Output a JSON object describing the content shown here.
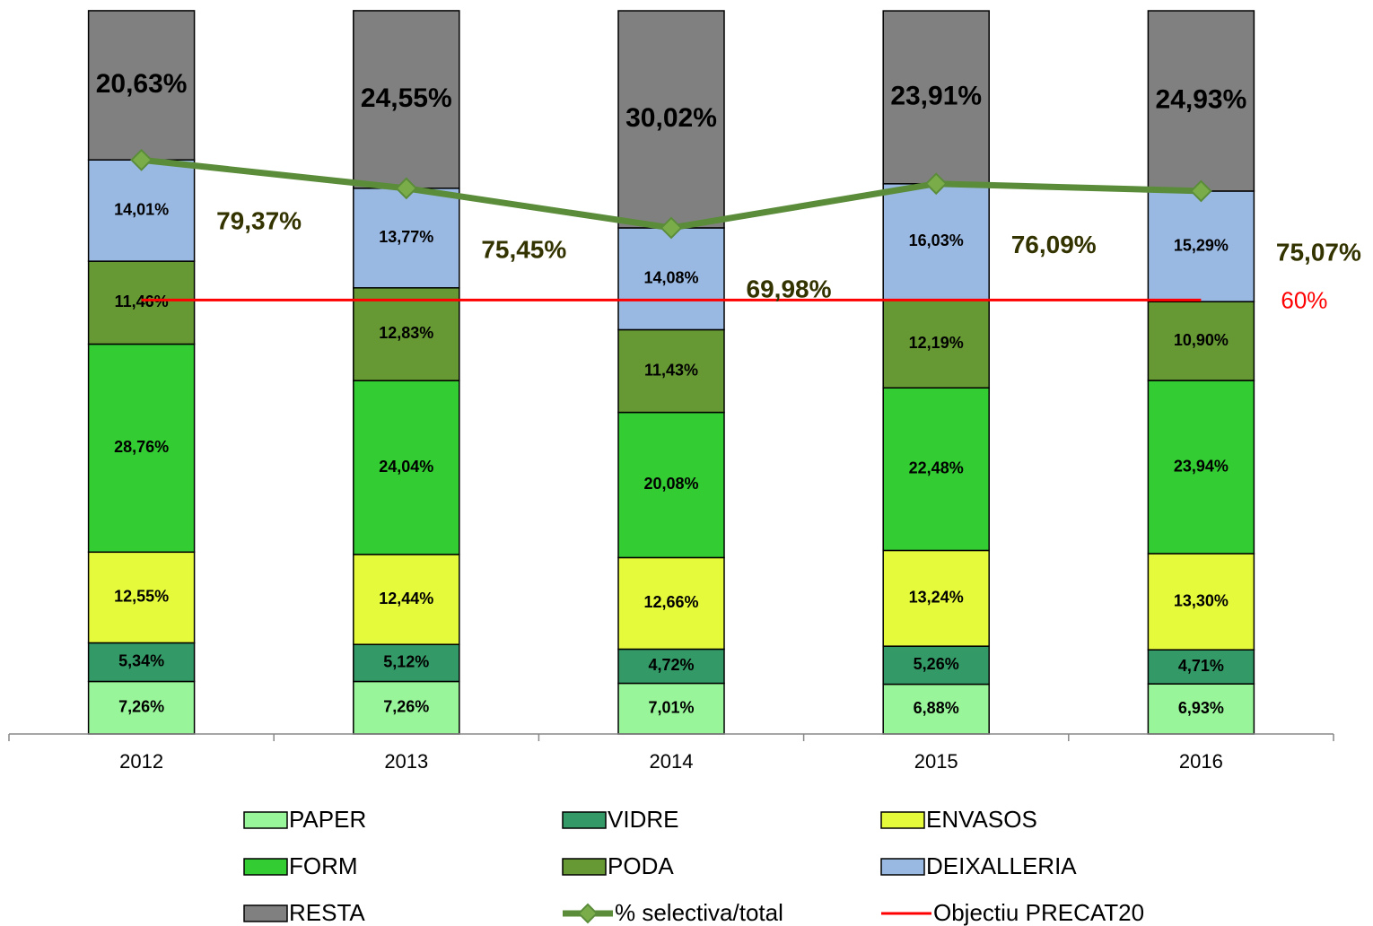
{
  "chart_data": {
    "type": "bar",
    "stacked": true,
    "categories": [
      "2012",
      "2013",
      "2014",
      "2015",
      "2016"
    ],
    "ylim": [
      0,
      100
    ],
    "series": [
      {
        "name": "PAPER",
        "color": "#99f599",
        "values": [
          7.26,
          7.26,
          7.01,
          6.88,
          6.93
        ],
        "value_labels": [
          "7,26%",
          "7,26%",
          "7,01%",
          "6,88%",
          "6,93%"
        ]
      },
      {
        "name": "VIDRE",
        "color": "#339966",
        "values": [
          5.34,
          5.12,
          4.72,
          5.26,
          4.71
        ],
        "value_labels": [
          "5,34%",
          "5,12%",
          "4,72%",
          "5,26%",
          "4,71%"
        ]
      },
      {
        "name": "ENVASOS",
        "color": "#e6fa3c",
        "values": [
          12.55,
          12.44,
          12.66,
          13.24,
          13.3
        ],
        "value_labels": [
          "12,55%",
          "12,44%",
          "12,66%",
          "13,24%",
          "13,30%"
        ]
      },
      {
        "name": "FORM",
        "color": "#33cc33",
        "values": [
          28.76,
          24.04,
          20.08,
          22.48,
          23.94
        ],
        "value_labels": [
          "28,76%",
          "24,04%",
          "20,08%",
          "22,48%",
          "23,94%"
        ]
      },
      {
        "name": "PODA",
        "color": "#669933",
        "values": [
          11.46,
          12.83,
          11.43,
          12.19,
          10.9
        ],
        "value_labels": [
          "11,46%",
          "12,83%",
          "11,43%",
          "12,19%",
          "10,90%"
        ]
      },
      {
        "name": "DEIXALLERIA",
        "color": "#99b8e2",
        "values": [
          14.01,
          13.77,
          14.08,
          16.03,
          15.29
        ],
        "value_labels": [
          "14,01%",
          "13,77%",
          "14,08%",
          "16,03%",
          "15,29%"
        ]
      },
      {
        "name": "RESTA",
        "color": "#808080",
        "values": [
          20.63,
          24.55,
          30.02,
          23.91,
          24.93
        ],
        "value_labels": [
          "20,63%",
          "24,55%",
          "30,02%",
          "23,91%",
          "24,93%"
        ]
      }
    ],
    "line": {
      "name": "% selectiva/total",
      "color": "#5b8c3a",
      "values": [
        79.37,
        75.45,
        69.98,
        76.09,
        75.07
      ],
      "value_labels": [
        "79,37%",
        "75,45%",
        "69,98%",
        "76,09%",
        "75,07%"
      ]
    },
    "target": {
      "name": "Objectiu PRECAT20",
      "color": "#ff0000",
      "value": 60,
      "value_label": "60%"
    }
  }
}
